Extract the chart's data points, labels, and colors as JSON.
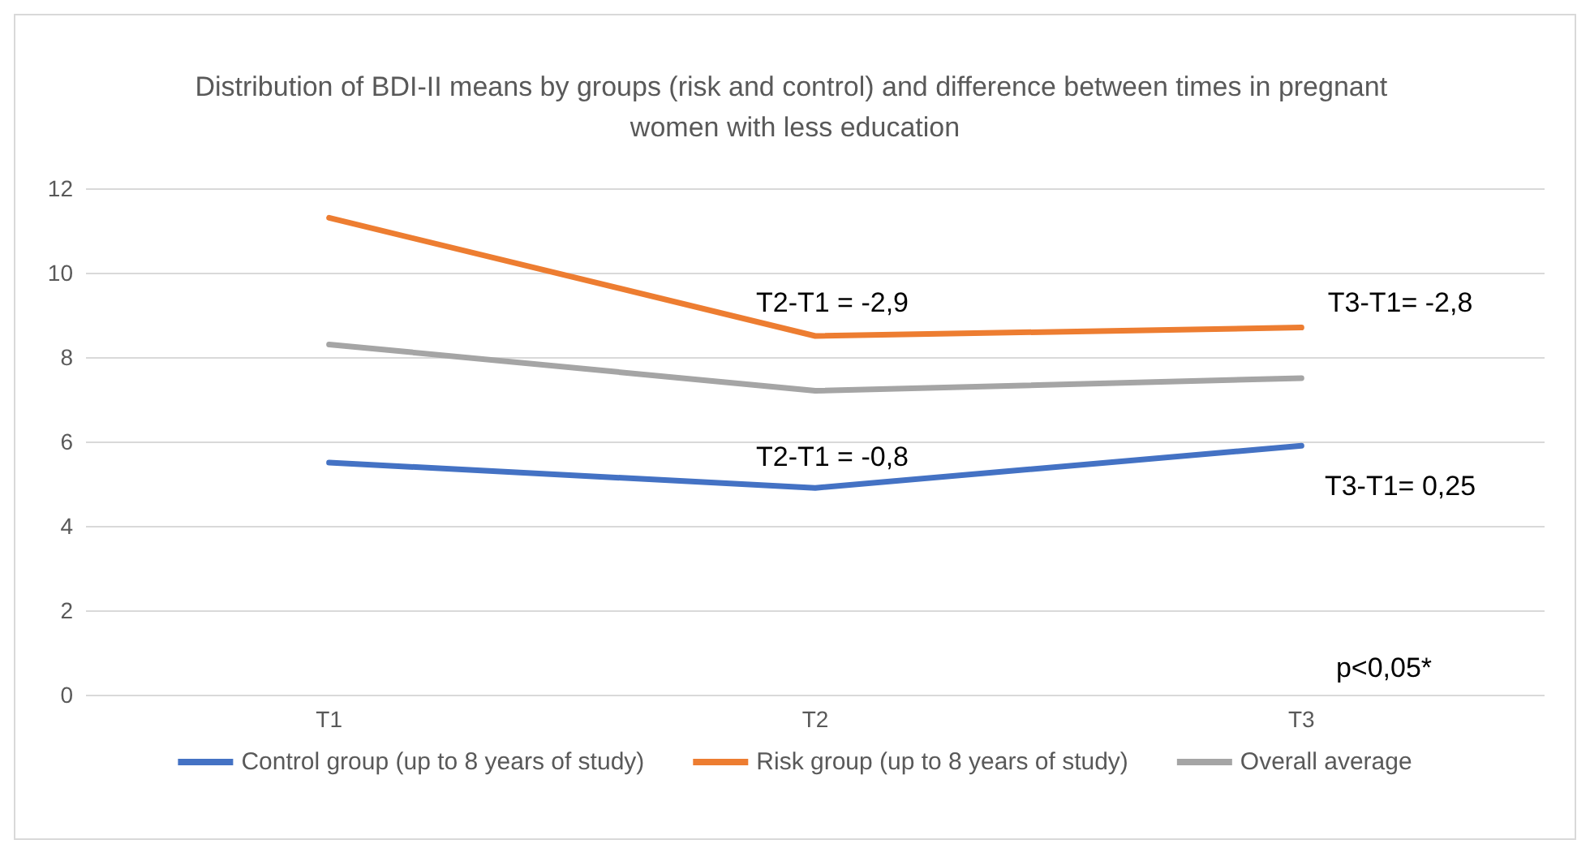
{
  "chart_data": {
    "type": "line",
    "title": "Distribution of BDI-II means by groups (risk and control) and difference between times in pregnant women with less education",
    "categories": [
      "T1",
      "T2",
      "T3"
    ],
    "series": [
      {
        "name": "Control group (up to 8 years of study)",
        "color": "#4472c4",
        "values": [
          5.5,
          4.9,
          5.9
        ]
      },
      {
        "name": "Risk group (up to 8 years of study)",
        "color": "#ed7d31",
        "values": [
          11.3,
          8.5,
          8.7
        ]
      },
      {
        "name": "Overall average",
        "color": "#a5a5a5",
        "values": [
          8.3,
          7.2,
          7.5
        ]
      }
    ],
    "ylim": [
      0,
      12
    ],
    "yticks": [
      0,
      2,
      4,
      6,
      8,
      10,
      12
    ],
    "grid": "y",
    "legend": "bottom",
    "marker": "none",
    "line_style": "solid",
    "annotations": [
      "T2-T1 = -2,9",
      "T3-T1= -2,8",
      "T2-T1 = -0,8",
      "T3-T1= 0,25",
      "p<0,05*"
    ]
  }
}
